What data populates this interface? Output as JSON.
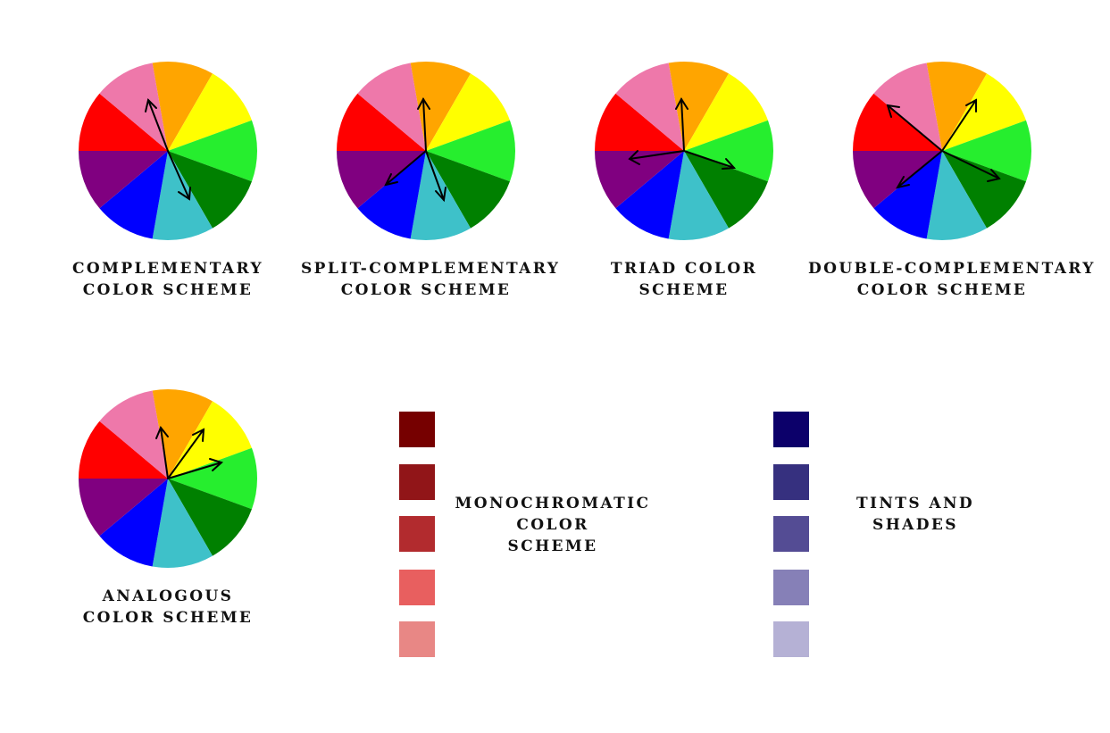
{
  "wheel_colors": [
    "#FFA500",
    "#FFFF00",
    "#26EE2E",
    "#008000",
    "#3EC1C9",
    "#0000FF",
    "#800080",
    "#FF0000",
    "#EE78AA"
  ],
  "schemes": [
    {
      "id": "complementary",
      "caption_lines": [
        "COMPLEMENTARY",
        "COLOR SCHEME"
      ]
    },
    {
      "id": "split-complementary",
      "caption_lines": [
        "SPLIT-COMPLEMENTARY",
        "COLOR SCHEME"
      ]
    },
    {
      "id": "triad",
      "caption_lines": [
        "TRIAD COLOR",
        "SCHEME"
      ]
    },
    {
      "id": "double-complementary",
      "caption_lines": [
        "DOUBLE-COMPLEMENTARY",
        "COLOR SCHEME"
      ]
    },
    {
      "id": "analogous",
      "caption_lines": [
        "ANALOGOUS",
        "COLOR SCHEME"
      ]
    }
  ],
  "monochromatic": {
    "caption_lines": [
      "MONOCHROMATIC",
      "COLOR",
      "SCHEME"
    ],
    "colors": [
      "#760000",
      "#911518",
      "#B22B2E",
      "#E85F5F",
      "#E88785"
    ]
  },
  "tints_shades": {
    "caption_lines": [
      "TINTS AND",
      "SHADES"
    ],
    "colors": [
      "#0C006A",
      "#36307F",
      "#544C94",
      "#8680B7",
      "#B5B1D5"
    ]
  }
}
